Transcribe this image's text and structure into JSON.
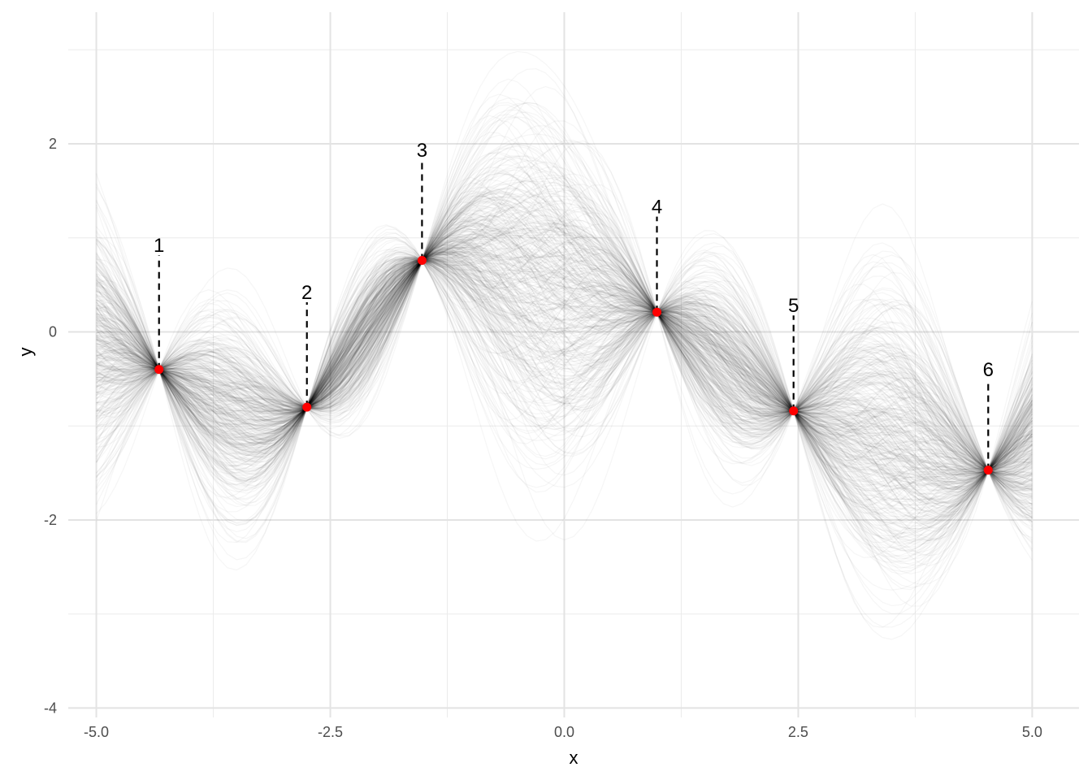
{
  "chart_data": {
    "type": "line",
    "title": "",
    "xlabel": "x",
    "ylabel": "y",
    "xlim": [
      -5.3,
      5.5
    ],
    "ylim": [
      -4.1,
      3.4
    ],
    "x_ticks": [
      -5.0,
      -2.5,
      0.0,
      2.5,
      5.0
    ],
    "x_tick_labels": [
      "-5.0",
      "-2.5",
      "0.0",
      "2.5",
      "5.0"
    ],
    "y_ticks": [
      -4,
      -2,
      0,
      2
    ],
    "y_tick_labels": [
      "-4",
      "-2",
      "0",
      "2"
    ],
    "x_minor_ticks": [
      -3.75,
      -1.25,
      1.25,
      3.75
    ],
    "y_minor_ticks": [
      -3,
      -1,
      1,
      3
    ],
    "grid": true,
    "line_color": "#000000",
    "point_color": "#ff0000",
    "observed_points": [
      {
        "label": "1",
        "x": -4.33,
        "y": -0.4
      },
      {
        "label": "2",
        "x": -2.75,
        "y": -0.8
      },
      {
        "label": "3",
        "x": -1.52,
        "y": 0.76
      },
      {
        "label": "4",
        "x": 0.99,
        "y": 0.21
      },
      {
        "label": "5",
        "x": 2.45,
        "y": -0.84
      },
      {
        "label": "6",
        "x": 4.53,
        "y": -1.47
      }
    ],
    "label_offsets": [
      1.25,
      1.15,
      1.1,
      1.05,
      1.05,
      1.0
    ]
  }
}
